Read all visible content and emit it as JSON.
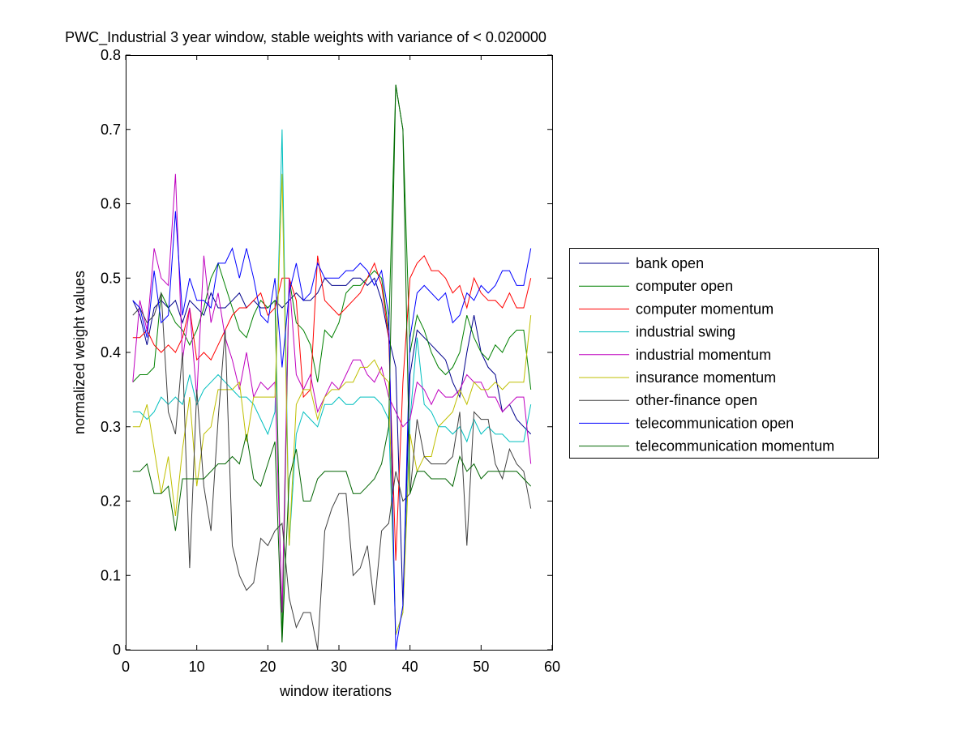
{
  "chart_data": {
    "type": "line",
    "title": "PWC_Industrial 3 year window, stable weights with variance of < 0.020000",
    "xlabel": "window iterations",
    "ylabel": "normalized weight values",
    "xlim": [
      0,
      60
    ],
    "ylim": [
      0,
      0.8
    ],
    "xticks": [
      0,
      10,
      20,
      30,
      40,
      50,
      60
    ],
    "yticks": [
      0,
      0.1,
      0.2,
      0.3,
      0.4,
      0.5,
      0.6,
      0.7,
      0.8
    ],
    "xtick_labels": [
      "0",
      "10",
      "20",
      "30",
      "40",
      "50",
      "60"
    ],
    "ytick_labels": [
      "0",
      "0.1",
      "0.2",
      "0.3",
      "0.4",
      "0.5",
      "0.6",
      "0.7",
      "0.8"
    ],
    "grid": false,
    "legend_position": "outside-right",
    "x_start": 1,
    "series": [
      {
        "name": "bank open",
        "color": "#00008b",
        "values": [
          0.47,
          0.45,
          0.41,
          0.46,
          0.47,
          0.46,
          0.47,
          0.44,
          0.47,
          0.46,
          0.45,
          0.48,
          0.46,
          0.46,
          0.47,
          0.48,
          0.46,
          0.47,
          0.46,
          0.46,
          0.47,
          0.46,
          0.47,
          0.48,
          0.47,
          0.47,
          0.48,
          0.5,
          0.49,
          0.49,
          0.49,
          0.5,
          0.5,
          0.49,
          0.5,
          0.47,
          0.42,
          0.38,
          0.06,
          0.37,
          0.43,
          0.42,
          0.41,
          0.4,
          0.39,
          0.36,
          0.34,
          0.4,
          0.45,
          0.4,
          0.38,
          0.37,
          0.32,
          0.33,
          0.31,
          0.3,
          0.29
        ]
      },
      {
        "name": "computer open",
        "color": "#008000",
        "values": [
          0.36,
          0.37,
          0.37,
          0.38,
          0.48,
          0.46,
          0.44,
          0.43,
          0.41,
          0.43,
          0.46,
          0.5,
          0.52,
          0.49,
          0.46,
          0.43,
          0.42,
          0.45,
          0.47,
          0.46,
          0.47,
          0.01,
          0.5,
          0.44,
          0.43,
          0.41,
          0.36,
          0.43,
          0.42,
          0.44,
          0.48,
          0.49,
          0.49,
          0.5,
          0.51,
          0.5,
          0.43,
          0.76,
          0.7,
          0.4,
          0.45,
          0.43,
          0.4,
          0.38,
          0.37,
          0.38,
          0.4,
          0.45,
          0.42,
          0.4,
          0.39,
          0.41,
          0.4,
          0.42,
          0.43,
          0.43,
          0.35
        ]
      },
      {
        "name": "computer momentum",
        "color": "#ff0000",
        "values": [
          0.42,
          0.42,
          0.43,
          0.41,
          0.4,
          0.41,
          0.4,
          0.42,
          0.46,
          0.39,
          0.4,
          0.39,
          0.41,
          0.43,
          0.45,
          0.46,
          0.46,
          0.47,
          0.48,
          0.45,
          0.46,
          0.5,
          0.5,
          0.47,
          0.34,
          0.35,
          0.53,
          0.47,
          0.46,
          0.45,
          0.46,
          0.47,
          0.48,
          0.5,
          0.52,
          0.49,
          0.42,
          0.12,
          0.36,
          0.5,
          0.52,
          0.53,
          0.51,
          0.51,
          0.5,
          0.48,
          0.49,
          0.46,
          0.5,
          0.48,
          0.47,
          0.47,
          0.46,
          0.48,
          0.46,
          0.46,
          0.5
        ]
      },
      {
        "name": "industrial swing",
        "color": "#00bfbf",
        "values": [
          0.32,
          0.32,
          0.31,
          0.32,
          0.34,
          0.33,
          0.34,
          0.33,
          0.37,
          0.33,
          0.35,
          0.36,
          0.37,
          0.36,
          0.35,
          0.34,
          0.34,
          0.33,
          0.31,
          0.29,
          0.32,
          0.7,
          0.14,
          0.29,
          0.32,
          0.31,
          0.3,
          0.33,
          0.33,
          0.34,
          0.33,
          0.33,
          0.34,
          0.34,
          0.34,
          0.33,
          0.31,
          0.02,
          0.05,
          0.31,
          0.42,
          0.33,
          0.32,
          0.3,
          0.3,
          0.29,
          0.3,
          0.28,
          0.31,
          0.29,
          0.3,
          0.29,
          0.29,
          0.28,
          0.28,
          0.28,
          0.33
        ]
      },
      {
        "name": "industrial momentum",
        "color": "#bf00bf",
        "values": [
          0.36,
          0.47,
          0.43,
          0.54,
          0.5,
          0.49,
          0.64,
          0.39,
          0.46,
          0.34,
          0.53,
          0.44,
          0.48,
          0.42,
          0.39,
          0.35,
          0.4,
          0.34,
          0.36,
          0.35,
          0.36,
          0.05,
          0.5,
          0.37,
          0.35,
          0.37,
          0.32,
          0.34,
          0.36,
          0.35,
          0.37,
          0.39,
          0.39,
          0.37,
          0.36,
          0.38,
          0.34,
          0.32,
          0.3,
          0.31,
          0.36,
          0.35,
          0.33,
          0.35,
          0.34,
          0.34,
          0.35,
          0.37,
          0.36,
          0.36,
          0.34,
          0.34,
          0.32,
          0.33,
          0.34,
          0.34,
          0.25
        ]
      },
      {
        "name": "insurance momentum",
        "color": "#bfbf00",
        "values": [
          0.3,
          0.3,
          0.33,
          0.27,
          0.21,
          0.26,
          0.18,
          0.27,
          0.34,
          0.22,
          0.29,
          0.3,
          0.35,
          0.35,
          0.35,
          0.36,
          0.28,
          0.34,
          0.34,
          0.34,
          0.34,
          0.64,
          0.14,
          0.33,
          0.35,
          0.35,
          0.31,
          0.34,
          0.35,
          0.35,
          0.36,
          0.36,
          0.38,
          0.38,
          0.39,
          0.37,
          0.36,
          0.02,
          0.05,
          0.29,
          0.24,
          0.26,
          0.26,
          0.3,
          0.31,
          0.32,
          0.35,
          0.33,
          0.36,
          0.35,
          0.35,
          0.36,
          0.35,
          0.36,
          0.36,
          0.36,
          0.45
        ]
      },
      {
        "name": "other-finance open",
        "color": "#404040",
        "values": [
          0.45,
          0.46,
          0.44,
          0.45,
          0.48,
          0.32,
          0.29,
          0.4,
          0.11,
          0.35,
          0.22,
          0.16,
          0.31,
          0.43,
          0.14,
          0.1,
          0.08,
          0.09,
          0.15,
          0.14,
          0.16,
          0.17,
          0.07,
          0.03,
          0.05,
          0.05,
          0.0,
          0.16,
          0.19,
          0.21,
          0.21,
          0.1,
          0.11,
          0.14,
          0.06,
          0.16,
          0.17,
          0.24,
          0.2,
          0.21,
          0.31,
          0.26,
          0.25,
          0.25,
          0.25,
          0.26,
          0.32,
          0.14,
          0.32,
          0.31,
          0.31,
          0.25,
          0.23,
          0.27,
          0.25,
          0.24,
          0.19
        ]
      },
      {
        "name": "telecommunication open",
        "color": "#0000ff",
        "values": [
          0.47,
          0.46,
          0.42,
          0.51,
          0.44,
          0.45,
          0.59,
          0.45,
          0.5,
          0.47,
          0.47,
          0.46,
          0.52,
          0.52,
          0.54,
          0.5,
          0.54,
          0.5,
          0.45,
          0.44,
          0.5,
          0.38,
          0.48,
          0.52,
          0.47,
          0.48,
          0.52,
          0.5,
          0.5,
          0.5,
          0.51,
          0.51,
          0.52,
          0.51,
          0.49,
          0.51,
          0.45,
          0.0,
          0.06,
          0.42,
          0.48,
          0.49,
          0.48,
          0.47,
          0.48,
          0.44,
          0.45,
          0.48,
          0.47,
          0.49,
          0.48,
          0.49,
          0.51,
          0.51,
          0.49,
          0.49,
          0.54
        ]
      },
      {
        "name": "telecommunication momentum",
        "color": "#006400",
        "values": [
          0.24,
          0.24,
          0.25,
          0.21,
          0.21,
          0.22,
          0.16,
          0.23,
          0.23,
          0.23,
          0.23,
          0.24,
          0.25,
          0.25,
          0.26,
          0.25,
          0.29,
          0.23,
          0.22,
          0.25,
          0.28,
          0.01,
          0.23,
          0.27,
          0.2,
          0.2,
          0.23,
          0.24,
          0.24,
          0.24,
          0.24,
          0.21,
          0.21,
          0.22,
          0.23,
          0.25,
          0.3,
          0.76,
          0.7,
          0.21,
          0.24,
          0.24,
          0.23,
          0.23,
          0.23,
          0.22,
          0.26,
          0.24,
          0.25,
          0.23,
          0.24,
          0.24,
          0.24,
          0.24,
          0.24,
          0.23,
          0.22
        ]
      }
    ]
  }
}
